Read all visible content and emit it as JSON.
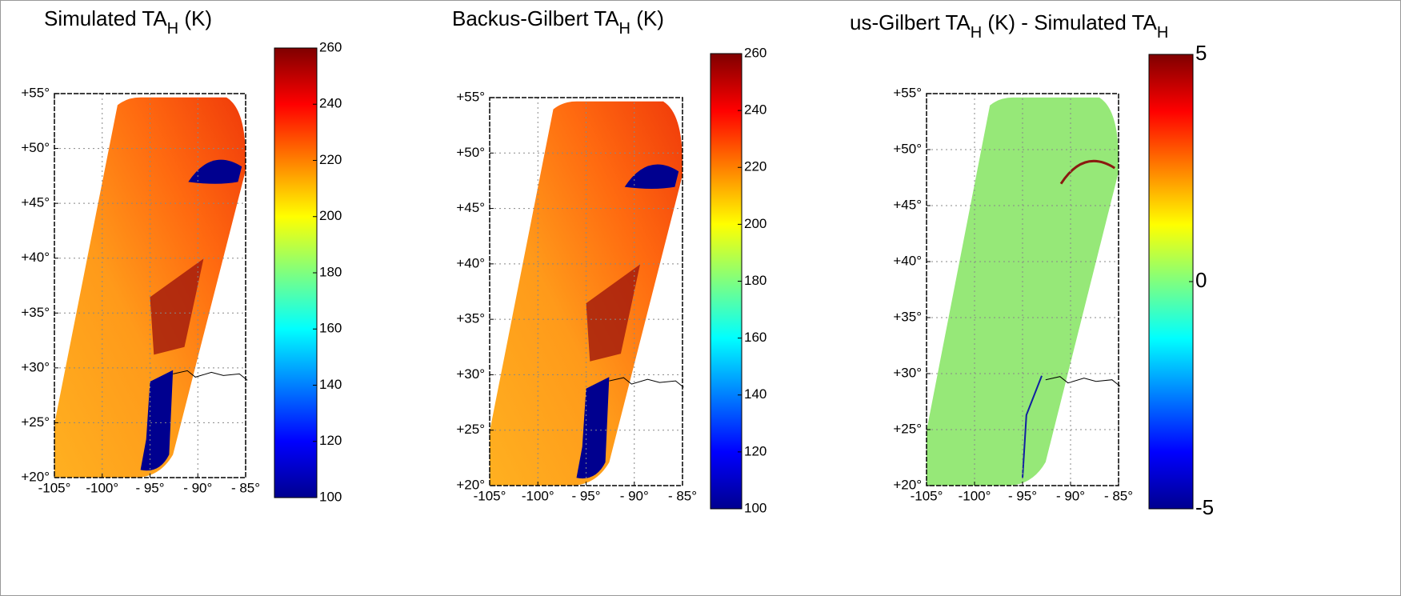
{
  "chart_data": [
    {
      "type": "map",
      "title": [
        {
          "text": "Simulated TA",
          "sub": false
        },
        {
          "text": "H",
          "sub": true
        },
        {
          "text": " (K)",
          "sub": false
        }
      ],
      "xlim": [
        -105,
        -85
      ],
      "xticks": [
        {
          "value": -105,
          "label": "-105°"
        },
        {
          "value": -100,
          "label": "-100°"
        },
        {
          "value": -95,
          "label": "- 95°"
        },
        {
          "value": -90,
          "label": "- 90°"
        },
        {
          "value": -85,
          "label": "- 85°"
        }
      ],
      "ylim": [
        20,
        55
      ],
      "yticks": [
        {
          "value": 20,
          "label": "+20°"
        },
        {
          "value": 25,
          "label": "+25°"
        },
        {
          "value": 30,
          "label": "+30°"
        },
        {
          "value": 35,
          "label": "+35°"
        },
        {
          "value": 40,
          "label": "+40°"
        },
        {
          "value": 45,
          "label": "+45°"
        },
        {
          "value": 50,
          "label": "+50°"
        },
        {
          "value": 55,
          "label": "+55°"
        }
      ],
      "clim": [
        100,
        260
      ],
      "cticks": [
        100,
        120,
        140,
        160,
        180,
        200,
        220,
        240,
        260
      ],
      "grid": true,
      "colormap": "jet"
    },
    {
      "type": "map",
      "title": [
        {
          "text": "Backus-Gilbert TA",
          "sub": false
        },
        {
          "text": "H",
          "sub": true
        },
        {
          "text": " (K)",
          "sub": false
        }
      ],
      "xlim": [
        -105,
        -85
      ],
      "xticks": [
        {
          "value": -105,
          "label": "-105°"
        },
        {
          "value": -100,
          "label": "-100°"
        },
        {
          "value": -95,
          "label": "- 95°"
        },
        {
          "value": -90,
          "label": "- 90°"
        },
        {
          "value": -85,
          "label": "- 85°"
        }
      ],
      "ylim": [
        20,
        55
      ],
      "yticks": [
        {
          "value": 20,
          "label": "+20°"
        },
        {
          "value": 25,
          "label": "+25°"
        },
        {
          "value": 30,
          "label": "+30°"
        },
        {
          "value": 35,
          "label": "+35°"
        },
        {
          "value": 40,
          "label": "+40°"
        },
        {
          "value": 45,
          "label": "+45°"
        },
        {
          "value": 50,
          "label": "+50°"
        },
        {
          "value": 55,
          "label": "+55°"
        }
      ],
      "clim": [
        100,
        260
      ],
      "cticks": [
        100,
        120,
        140,
        160,
        180,
        200,
        220,
        240,
        260
      ],
      "grid": true,
      "colormap": "jet"
    },
    {
      "type": "map",
      "title": [
        {
          "text": "us-Gilbert TA",
          "sub": false
        },
        {
          "text": "H",
          "sub": true
        },
        {
          "text": " (K) - Simulated TA",
          "sub": false
        },
        {
          "text": "H",
          "sub": true
        }
      ],
      "xlim": [
        -105,
        -85
      ],
      "xticks": [
        {
          "value": -105,
          "label": "-105°"
        },
        {
          "value": -100,
          "label": "-100°"
        },
        {
          "value": -95,
          "label": "- 95°"
        },
        {
          "value": -90,
          "label": "- 90°"
        },
        {
          "value": -85,
          "label": "- 85°"
        }
      ],
      "ylim": [
        20,
        55
      ],
      "yticks": [
        {
          "value": 20,
          "label": "+20°"
        },
        {
          "value": 25,
          "label": "+25°"
        },
        {
          "value": 30,
          "label": "+30°"
        },
        {
          "value": 35,
          "label": "+35°"
        },
        {
          "value": 40,
          "label": "+40°"
        },
        {
          "value": 45,
          "label": "+45°"
        },
        {
          "value": 50,
          "label": "+50°"
        },
        {
          "value": 55,
          "label": "+55°"
        }
      ],
      "clim": [
        -5,
        5
      ],
      "cticks": [
        -5,
        0,
        5
      ],
      "grid": true,
      "colormap": "jet"
    }
  ]
}
